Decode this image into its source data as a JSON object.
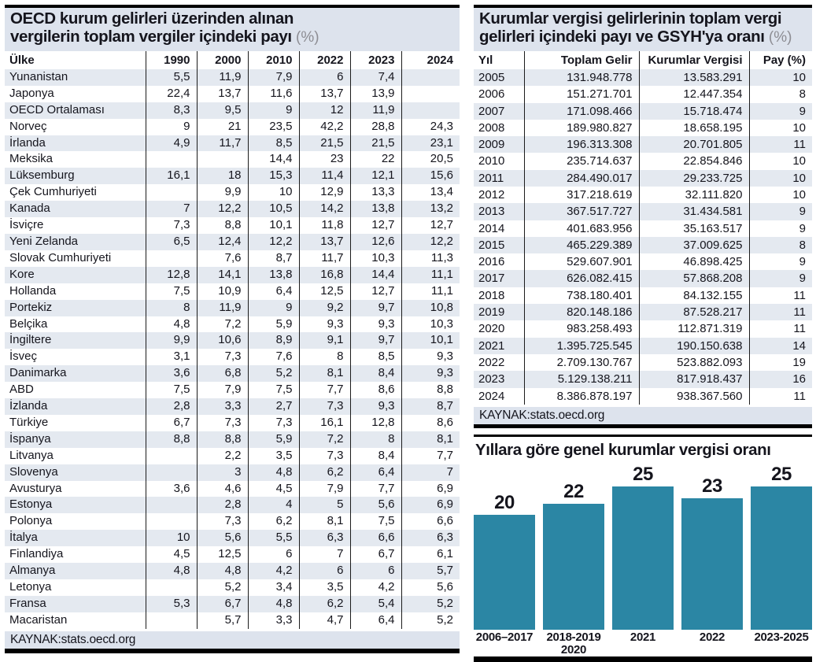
{
  "colors": {
    "bar_teal": "#2b86a4",
    "band_blue": "#e4e9f0",
    "title_bg": "#dde3ed",
    "rule_black": "#000000",
    "text_dark": "#15151d",
    "muted_gray": "#8d8d93"
  },
  "chart_data": [
    {
      "type": "table",
      "title": "OECD kurum gelirleri üzerinden alınan vergilerin toplam vergiler içindeki payı (%)",
      "title_lines": [
        "OECD kurum gelirleri üzerinden alınan",
        "vergilerin toplam vergiler içindeki payı"
      ],
      "title_suffix": "(%)",
      "columns": [
        "Ülke",
        "1990",
        "2000",
        "2010",
        "2022",
        "2023",
        "2024"
      ],
      "rows": [
        [
          "Yunanistan",
          "5,5",
          "11,9",
          "7,9",
          "6",
          "7,4",
          ""
        ],
        [
          "Japonya",
          "22,4",
          "13,7",
          "11,6",
          "13,7",
          "13,9",
          ""
        ],
        [
          "OECD Ortalaması",
          "8,3",
          "9,5",
          "9",
          "12",
          "11,9",
          ""
        ],
        [
          "Norveç",
          "9",
          "21",
          "23,5",
          "42,2",
          "28,8",
          "24,3"
        ],
        [
          "İrlanda",
          "4,9",
          "11,7",
          "8,5",
          "21,5",
          "21,5",
          "23,1"
        ],
        [
          "Meksika",
          "",
          "",
          "14,4",
          "23",
          "22",
          "20,5"
        ],
        [
          "Lüksemburg",
          "16,1",
          "18",
          "15,3",
          "11,4",
          "12,1",
          "15,6"
        ],
        [
          "Çek Cumhuriyeti",
          "",
          "9,9",
          "10",
          "12,9",
          "13,3",
          "13,4"
        ],
        [
          "Kanada",
          "7",
          "12,2",
          "10,5",
          "14,2",
          "13,8",
          "13,2"
        ],
        [
          "İsviçre",
          "7,3",
          "8,8",
          "10,1",
          "11,8",
          "12,7",
          "12,7"
        ],
        [
          "Yeni Zelanda",
          "6,5",
          "12,4",
          "12,2",
          "13,7",
          "12,6",
          "12,2"
        ],
        [
          "Slovak Cumhuriyeti",
          "",
          "7,6",
          "8,7",
          "11,7",
          "10,3",
          "11,3"
        ],
        [
          "Kore",
          "12,8",
          "14,1",
          "13,8",
          "16,8",
          "14,4",
          "11,1"
        ],
        [
          "Hollanda",
          "7,5",
          "10,9",
          "6,4",
          "12,5",
          "12,7",
          "11,1"
        ],
        [
          "Portekiz",
          "8",
          "11,9",
          "9",
          "9,2",
          "9,7",
          "10,8"
        ],
        [
          "Belçika",
          "4,8",
          "7,2",
          "5,9",
          "9,3",
          "9,3",
          "10,3"
        ],
        [
          "İngiltere",
          "9,9",
          "10,6",
          "8,9",
          "9,1",
          "9,7",
          "10,1"
        ],
        [
          "İsveç",
          "3,1",
          "7,3",
          "7,6",
          "8",
          "8,5",
          "9,3"
        ],
        [
          "Danimarka",
          "3,6",
          "6,8",
          "5,2",
          "8,1",
          "8,4",
          "9,3"
        ],
        [
          "ABD",
          "7,5",
          "7,9",
          "7,5",
          "7,7",
          "8,6",
          "8,8"
        ],
        [
          "İzlanda",
          "2,8",
          "3,3",
          "2,7",
          "7,3",
          "9,3",
          "8,7"
        ],
        [
          "Türkiye",
          "6,7",
          "7,3",
          "7,3",
          "16,1",
          "12,8",
          "8,6"
        ],
        [
          "İspanya",
          "8,8",
          "8,8",
          "5,9",
          "7,2",
          "8",
          "8,1"
        ],
        [
          "Litvanya",
          "",
          "2,2",
          "3,5",
          "7,3",
          "8,4",
          "7,7"
        ],
        [
          "Slovenya",
          "",
          "3",
          "4,8",
          "6,2",
          "6,4",
          "7"
        ],
        [
          "Avusturya",
          "3,6",
          "4,6",
          "4,5",
          "7,9",
          "7,7",
          "6,9"
        ],
        [
          "Estonya",
          "",
          "2,8",
          "4",
          "5",
          "5,6",
          "6,9"
        ],
        [
          "Polonya",
          "",
          "7,3",
          "6,2",
          "8,1",
          "7,5",
          "6,6"
        ],
        [
          "İtalya",
          "10",
          "5,6",
          "5,5",
          "6,3",
          "6,6",
          "6,3"
        ],
        [
          "Finlandiya",
          "4,5",
          "12,5",
          "6",
          "7",
          "6,7",
          "6,1"
        ],
        [
          "Almanya",
          "4,8",
          "4,8",
          "4,2",
          "6",
          "6",
          "5,7"
        ],
        [
          "Letonya",
          "",
          "5,2",
          "3,4",
          "3,5",
          "4,2",
          "5,6"
        ],
        [
          "Fransa",
          "5,3",
          "6,7",
          "4,8",
          "6,2",
          "5,4",
          "5,2"
        ],
        [
          "Macaristan",
          "",
          "5,7",
          "3,3",
          "4,7",
          "6,4",
          "5,2"
        ]
      ],
      "source": "KAYNAK:stats.oecd.org"
    },
    {
      "type": "table",
      "title": "Kurumlar vergisi gelirlerinin toplam vergi gelirleri içindeki payı ve GSYH'ya oranı (%)",
      "title_lines": [
        "Kurumlar vergisi gelirlerinin toplam vergi",
        "gelirleri içindeki payı ve GSYH'ya oranı"
      ],
      "title_suffix": "(%)",
      "columns": [
        "Yıl",
        "Toplam Gelir",
        "Kurumlar Vergisi",
        "Pay (%)"
      ],
      "rows": [
        [
          "2005",
          "131.948.778",
          "13.583.291",
          "10"
        ],
        [
          "2006",
          "151.271.701",
          "12.447.354",
          "8"
        ],
        [
          "2007",
          "171.098.466",
          "15.718.474",
          "9"
        ],
        [
          "2008",
          "189.980.827",
          "18.658.195",
          "10"
        ],
        [
          "2009",
          "196.313.308",
          "20.701.805",
          "11"
        ],
        [
          "2010",
          "235.714.637",
          "22.854.846",
          "10"
        ],
        [
          "2011",
          "284.490.017",
          "29.233.725",
          "10"
        ],
        [
          "2012",
          "317.218.619",
          "32.111.820",
          "10"
        ],
        [
          "2013",
          "367.517.727",
          "31.434.581",
          "9"
        ],
        [
          "2014",
          "401.683.956",
          "35.163.517",
          "9"
        ],
        [
          "2015",
          "465.229.389",
          "37.009.625",
          "8"
        ],
        [
          "2016",
          "529.607.901",
          "46.898.425",
          "9"
        ],
        [
          "2017",
          "626.082.415",
          "57.868.208",
          "9"
        ],
        [
          "2018",
          "738.180.401",
          "84.132.155",
          "11"
        ],
        [
          "2019",
          "820.148.186",
          "87.528.217",
          "11"
        ],
        [
          "2020",
          "983.258.493",
          "112.871.319",
          "11"
        ],
        [
          "2021",
          "1.395.725.545",
          "190.150.638",
          "14"
        ],
        [
          "2022",
          "2.709.130.767",
          "523.882.093",
          "19"
        ],
        [
          "2023",
          "5.129.138.211",
          "817.918.437",
          "16"
        ],
        [
          "2024",
          "8.386.878.197",
          "938.367.560",
          "11"
        ]
      ],
      "source": "KAYNAK:stats.oecd.org"
    },
    {
      "type": "bar",
      "title": "Yıllara göre genel kurumlar vergisi oranı",
      "categories": [
        "2006–2017",
        "2018-2019\n2020",
        "2021",
        "2022",
        "2023-2025"
      ],
      "values": [
        20,
        22,
        25,
        23,
        25
      ],
      "value_labels": [
        "20",
        "22",
        "25",
        "23",
        "25"
      ],
      "bar_color": "#2b86a4",
      "ylim": [
        0,
        25
      ],
      "grid": false,
      "legend": "none"
    }
  ]
}
